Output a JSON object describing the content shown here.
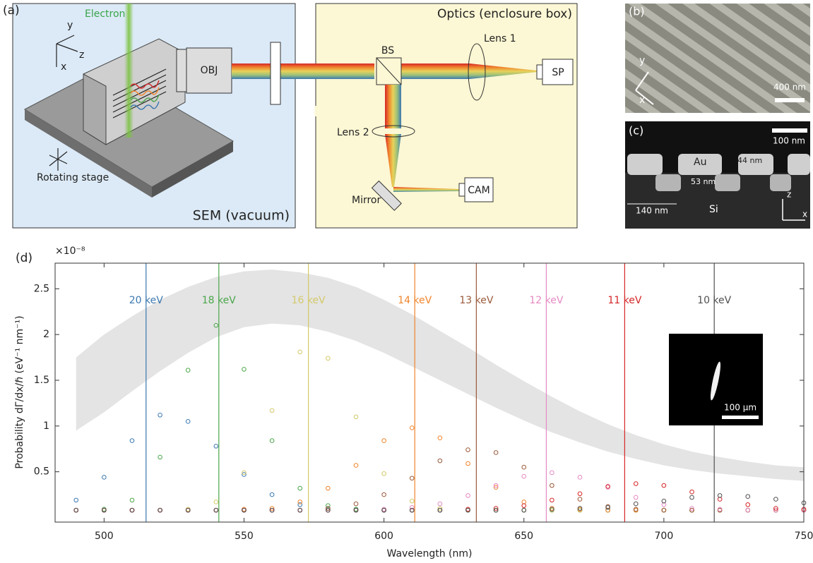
{
  "diagram": {
    "a": {
      "label": "(a)",
      "electron": "Electron",
      "axis_y": "y",
      "axis_z": "z",
      "axis_x": "x",
      "objective": "OBJ",
      "stage": "Rotating stage",
      "sem": "SEM (vacuum)",
      "optics": "Optics (enclosure box)",
      "bs": "BS",
      "lens1": "Lens 1",
      "sp": "SP",
      "lens2": "Lens 2",
      "mirror": "Mirror",
      "cam": "CAM"
    },
    "b": {
      "label": "(b)",
      "axis_y": "y",
      "axis_x": "x",
      "scale": "400 nm"
    },
    "c": {
      "label": "(c)",
      "scale": "100 nm",
      "au": "Au",
      "thick_au": "44 nm",
      "thick_pillar": "53 nm",
      "period": "140 nm",
      "si": "Si",
      "axis_z": "z",
      "axis_x": "x"
    }
  },
  "chart_data": {
    "type": "scatter",
    "panel_label": "(d)",
    "xlabel": "Wavelength (nm)",
    "ylabel": "Probability dΓ/dx/ℏ (eV⁻¹ nm⁻¹)",
    "y_multiplier": "×10⁻⁸",
    "inset_label": "100 µm",
    "xlim": [
      482.5,
      750
    ],
    "ylim": [
      -0.05,
      2.78
    ],
    "xticks": [
      500,
      550,
      600,
      650,
      700,
      750
    ],
    "yticks": [
      0.5,
      1,
      1.5,
      2,
      2.5
    ],
    "x": [
      490,
      500,
      510,
      520,
      530,
      540,
      550,
      560,
      570,
      580,
      590,
      600,
      610,
      620,
      630,
      640,
      650,
      660,
      670,
      680,
      690,
      700,
      710,
      720,
      730,
      740,
      750
    ],
    "band": {
      "color": "#e4e4e4",
      "upper": [
        1.75,
        2.0,
        2.2,
        2.38,
        2.52,
        2.63,
        2.69,
        2.71,
        2.68,
        2.62,
        2.52,
        2.38,
        2.22,
        2.04,
        1.86,
        1.67,
        1.49,
        1.32,
        1.16,
        1.02,
        0.9,
        0.8,
        0.72,
        0.66,
        0.61,
        0.57,
        0.55
      ],
      "lower": [
        0.95,
        1.15,
        1.38,
        1.6,
        1.8,
        1.97,
        2.08,
        2.12,
        2.1,
        2.03,
        1.93,
        1.8,
        1.65,
        1.5,
        1.35,
        1.2,
        1.06,
        0.93,
        0.82,
        0.72,
        0.64,
        0.57,
        0.52,
        0.48,
        0.45,
        0.42,
        0.4
      ]
    },
    "series": [
      {
        "name": "20 keV",
        "color": "#3b78b0",
        "line_x": 515,
        "values": [
          0.19,
          0.44,
          0.84,
          1.12,
          1.05,
          0.78,
          0.47,
          0.25,
          0.14,
          0.1,
          0.09,
          0.08,
          0.08,
          0.08,
          0.08,
          0.08,
          0.08,
          0.08,
          0.08,
          0.08,
          0.08,
          0.08,
          0.08,
          0.08,
          0.08,
          0.08,
          0.08
        ]
      },
      {
        "name": "18 keV",
        "color": "#4aa64a",
        "line_x": 541,
        "values": [
          0.08,
          0.09,
          0.19,
          0.66,
          1.61,
          2.1,
          1.62,
          0.84,
          0.32,
          0.13,
          0.09,
          0.08,
          0.08,
          0.08,
          0.08,
          0.08,
          0.08,
          0.08,
          0.08,
          0.08,
          0.08,
          0.08,
          0.08,
          0.08,
          0.08,
          0.08,
          0.08
        ]
      },
      {
        "name": "16 keV",
        "color": "#d4c96a",
        "line_x": 573,
        "values": [
          0.08,
          0.08,
          0.08,
          0.08,
          0.09,
          0.17,
          0.49,
          1.17,
          1.81,
          1.74,
          1.1,
          0.48,
          0.18,
          0.1,
          0.08,
          0.08,
          0.08,
          0.08,
          0.08,
          0.08,
          0.08,
          0.08,
          0.08,
          0.08,
          0.08,
          0.08,
          0.08
        ]
      },
      {
        "name": "14 keV",
        "color": "#f0852d",
        "line_x": 611,
        "values": [
          0.08,
          0.08,
          0.08,
          0.08,
          0.08,
          0.08,
          0.09,
          0.1,
          0.17,
          0.32,
          0.57,
          0.84,
          0.98,
          0.87,
          0.59,
          0.33,
          0.17,
          0.1,
          0.09,
          0.08,
          0.08,
          0.08,
          0.08,
          0.08,
          0.08,
          0.08,
          0.08
        ]
      },
      {
        "name": "13 keV",
        "color": "#9a5a3a",
        "line_x": 633,
        "values": [
          0.08,
          0.08,
          0.08,
          0.08,
          0.08,
          0.08,
          0.08,
          0.08,
          0.08,
          0.1,
          0.15,
          0.25,
          0.43,
          0.62,
          0.74,
          0.71,
          0.55,
          0.35,
          0.2,
          0.12,
          0.09,
          0.08,
          0.08,
          0.08,
          0.08,
          0.08,
          0.08
        ]
      },
      {
        "name": "12 keV",
        "color": "#e68ac3",
        "line_x": 658,
        "values": [
          0.08,
          0.08,
          0.08,
          0.08,
          0.08,
          0.08,
          0.08,
          0.08,
          0.08,
          0.08,
          0.08,
          0.09,
          0.11,
          0.15,
          0.24,
          0.35,
          0.45,
          0.49,
          0.44,
          0.33,
          0.22,
          0.14,
          0.1,
          0.09,
          0.08,
          0.08,
          0.08
        ]
      },
      {
        "name": "11 keV",
        "color": "#d62728",
        "line_x": 686,
        "values": [
          0.08,
          0.08,
          0.08,
          0.08,
          0.08,
          0.08,
          0.08,
          0.08,
          0.08,
          0.08,
          0.08,
          0.08,
          0.08,
          0.08,
          0.09,
          0.1,
          0.13,
          0.19,
          0.26,
          0.34,
          0.37,
          0.35,
          0.28,
          0.2,
          0.14,
          0.1,
          0.09
        ]
      },
      {
        "name": "10 keV",
        "color": "#505050",
        "line_x": 718,
        "values": [
          0.08,
          0.08,
          0.08,
          0.08,
          0.08,
          0.08,
          0.08,
          0.08,
          0.08,
          0.08,
          0.08,
          0.08,
          0.08,
          0.08,
          0.08,
          0.08,
          0.08,
          0.09,
          0.1,
          0.11,
          0.15,
          0.18,
          0.22,
          0.24,
          0.23,
          0.2,
          0.16
        ]
      }
    ]
  }
}
